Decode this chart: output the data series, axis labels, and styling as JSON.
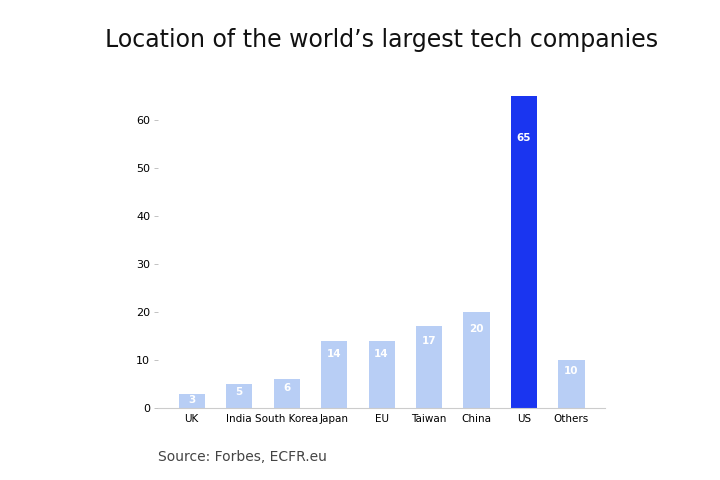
{
  "categories": [
    "UK",
    "India",
    "South Korea",
    "Japan",
    "EU",
    "Taiwan",
    "China",
    "US",
    "Others"
  ],
  "values": [
    3,
    5,
    6,
    14,
    14,
    17,
    20,
    65,
    10
  ],
  "bar_colors": [
    "#b8cef5",
    "#b8cef5",
    "#b8cef5",
    "#b8cef5",
    "#b8cef5",
    "#b8cef5",
    "#b8cef5",
    "#1a35f0",
    "#b8cef5"
  ],
  "label_color": "#ffffff",
  "title": "Location of the world’s largest tech companies",
  "title_fontsize": 17,
  "source_text": "Source: Forbes, ECFR.eu",
  "source_fontsize": 10,
  "ylim": [
    0,
    70
  ],
  "yticks": [
    0,
    10,
    20,
    30,
    40,
    50,
    60
  ],
  "background_color": "#ffffff",
  "label_fontsize": 7.5,
  "bar_width": 0.55
}
